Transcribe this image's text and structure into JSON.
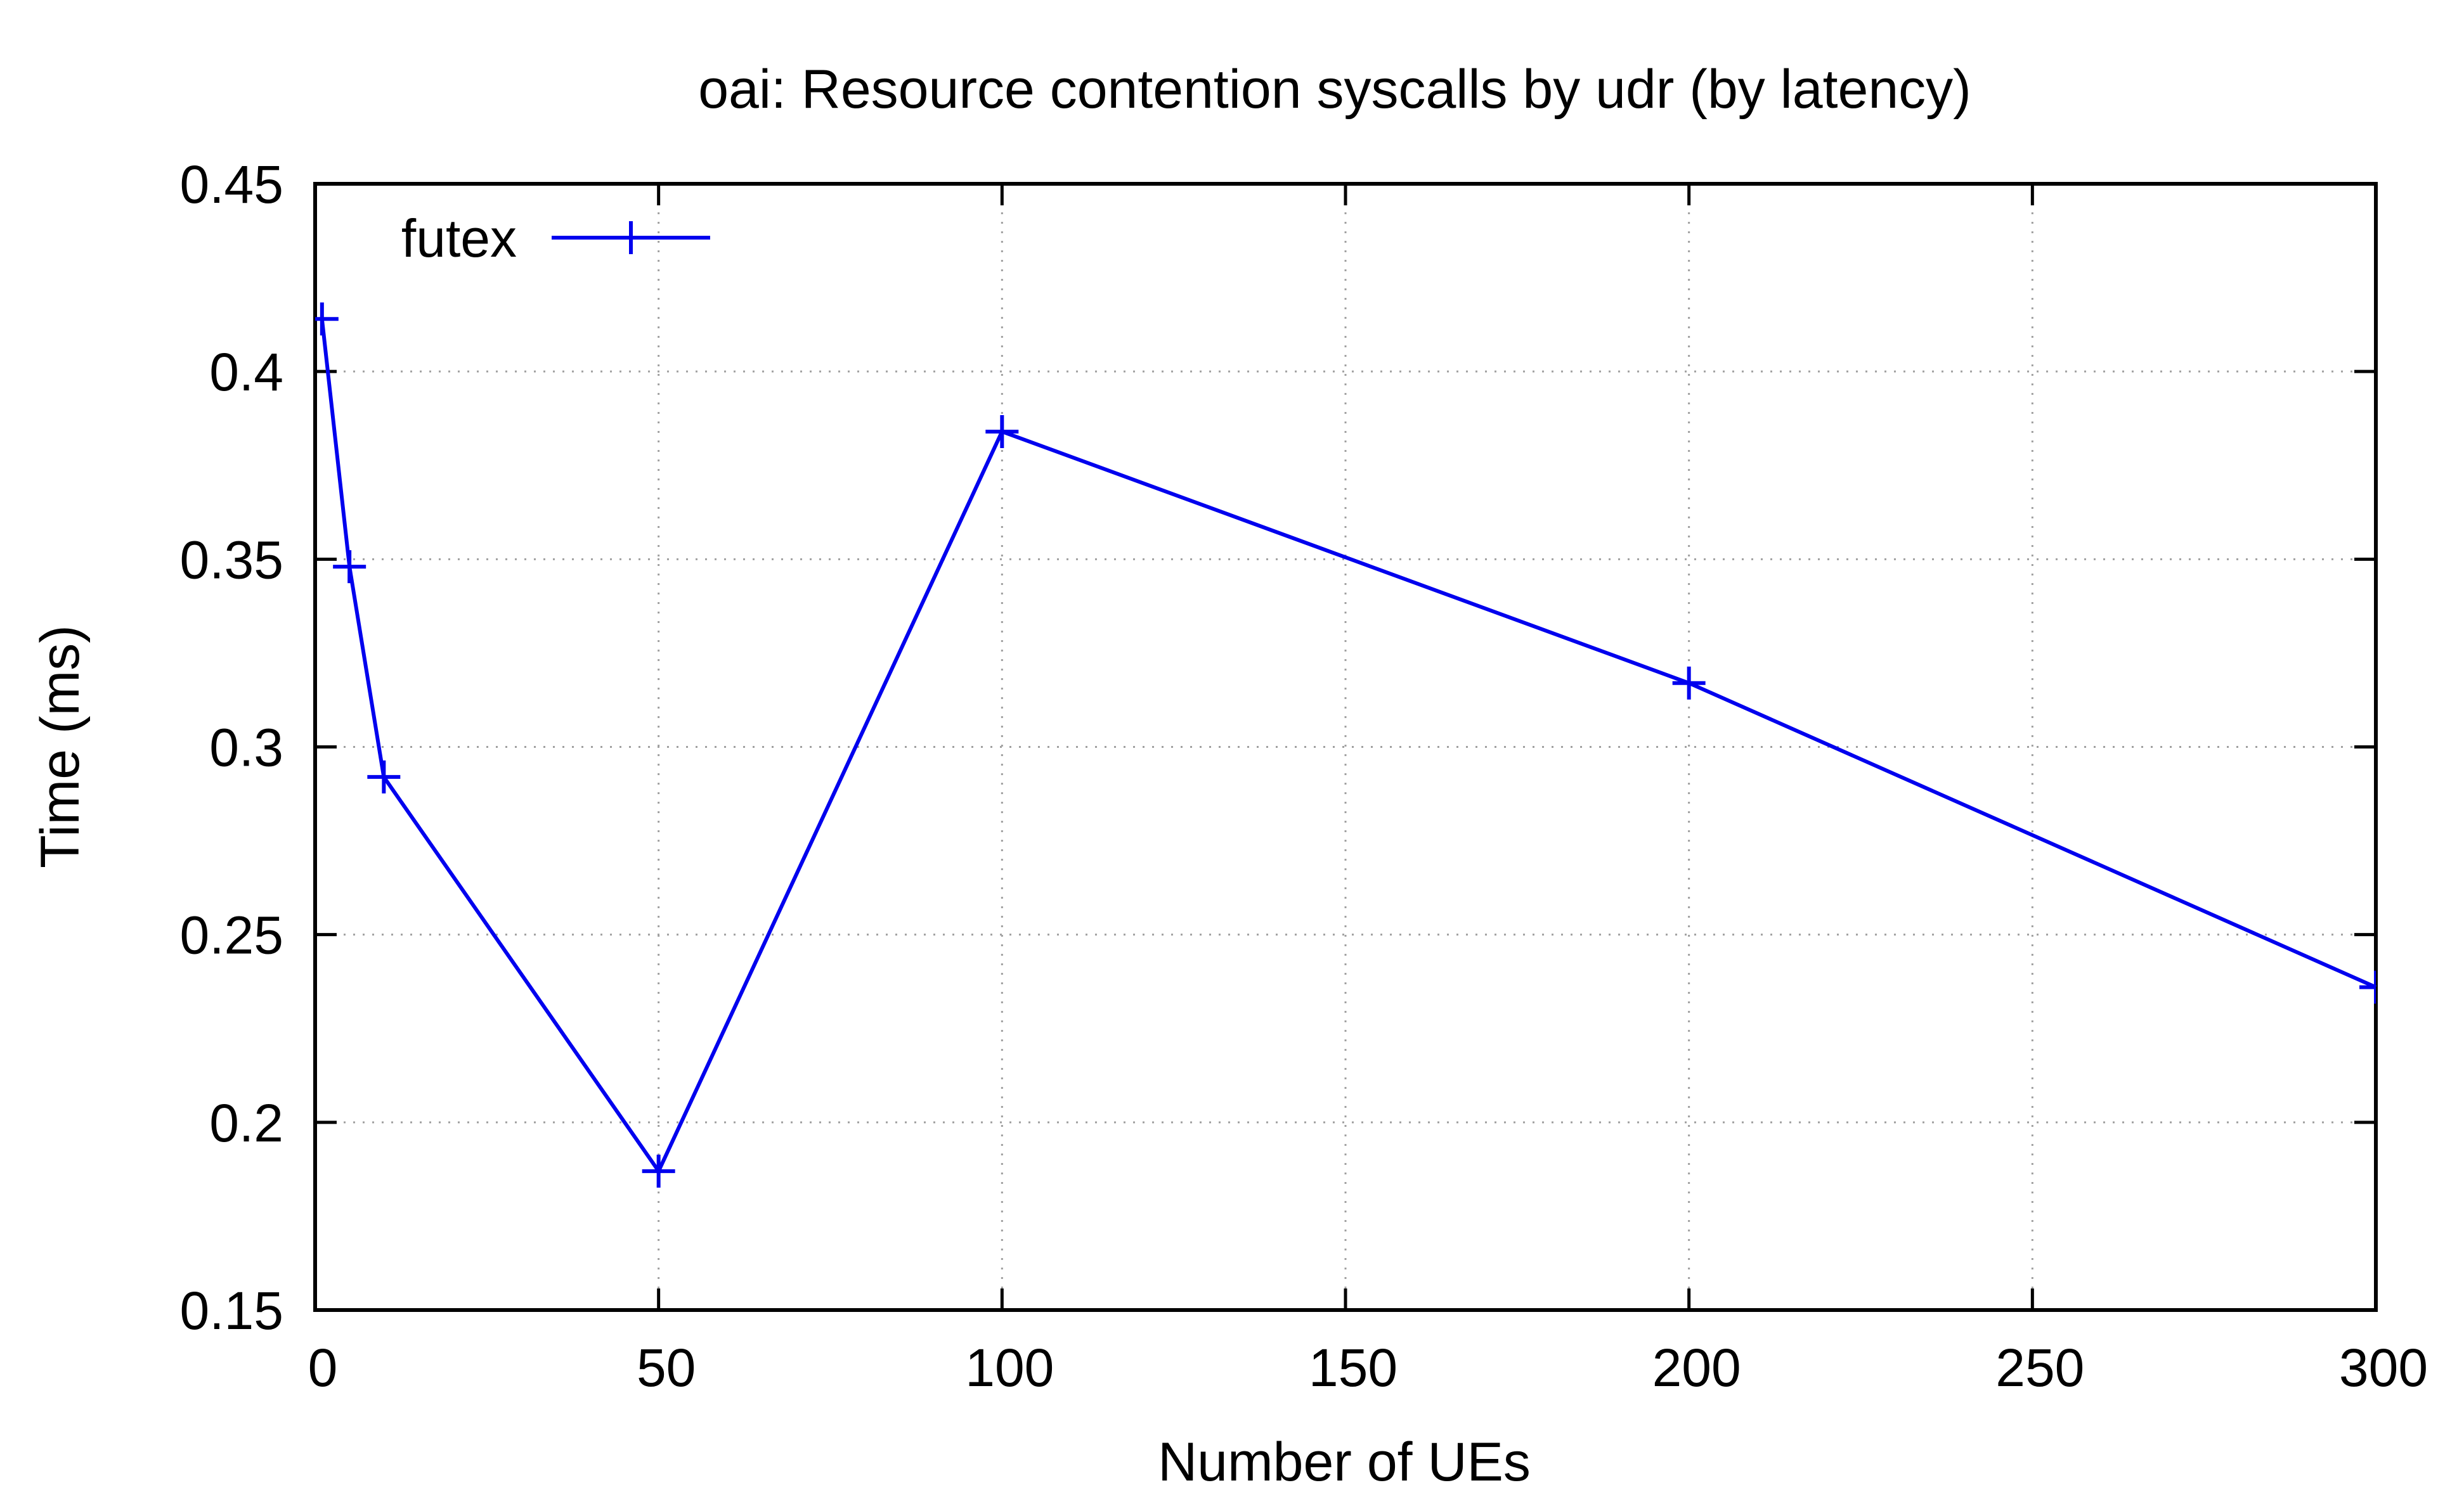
{
  "chart_data": {
    "type": "line",
    "title": "oai: Resource contention syscalls by udr (by latency)",
    "xlabel": "Number of UEs",
    "ylabel": "Time (ms)",
    "xlim": [
      0,
      300
    ],
    "ylim": [
      0.15,
      0.45
    ],
    "xticks": [
      0,
      50,
      100,
      150,
      200,
      250,
      300
    ],
    "yticks": [
      0.15,
      0.2,
      0.25,
      0.3,
      0.35,
      0.4,
      0.45
    ],
    "xtick_labels": [
      "0",
      "50",
      "100",
      "150",
      "200",
      "250",
      "300"
    ],
    "ytick_labels": [
      "0.15",
      "0.2",
      "0.25",
      "0.3",
      "0.35",
      "0.4",
      "0.45"
    ],
    "grid": true,
    "legend_position": "top-left",
    "series": [
      {
        "name": "futex",
        "color": "#0000ee",
        "marker": "plus",
        "x": [
          1,
          5,
          10,
          50,
          100,
          200,
          300
        ],
        "y": [
          0.414,
          0.348,
          0.292,
          0.187,
          0.384,
          0.317,
          0.236
        ]
      }
    ]
  }
}
